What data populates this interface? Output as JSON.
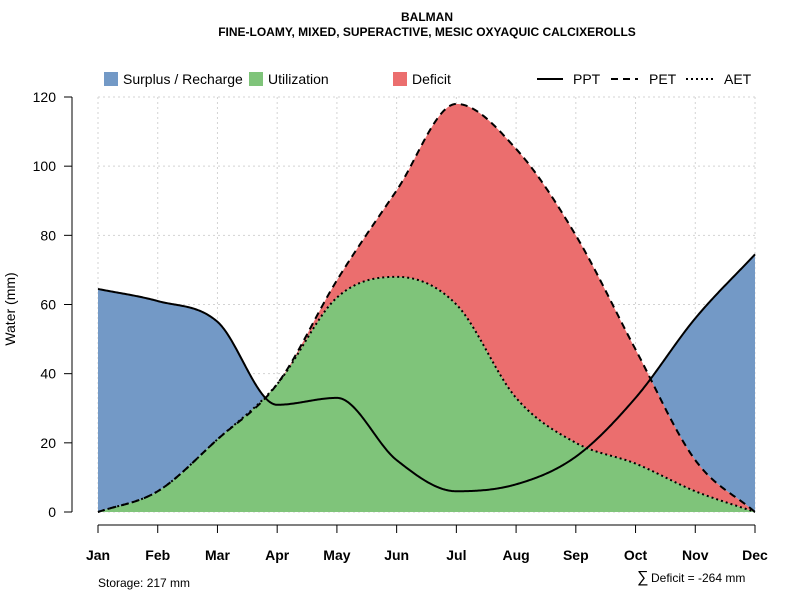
{
  "chart_data": {
    "type": "area",
    "title": "BALMAN",
    "subtitle": "FINE-LOAMY, MIXED, SUPERACTIVE, MESIC OXYAQUIC CALCIXEROLLS",
    "xlabel": "",
    "ylabel": "Water (mm)",
    "ylim": [
      0,
      120
    ],
    "yticks": [
      0,
      20,
      40,
      60,
      80,
      100,
      120
    ],
    "grid": true,
    "legend_position": "top",
    "categories": [
      "Jan",
      "Feb",
      "Mar",
      "Apr",
      "May",
      "Jun",
      "Jul",
      "Aug",
      "Sep",
      "Oct",
      "Nov",
      "Dec"
    ],
    "series": [
      {
        "name": "PPT",
        "style": "solid",
        "values": [
          64.5,
          61,
          55,
          31,
          33,
          15,
          6,
          8,
          16,
          33,
          56,
          74.5
        ]
      },
      {
        "name": "PET",
        "style": "dashed",
        "values": [
          0,
          6,
          21,
          37,
          67,
          93,
          118,
          105,
          80,
          47,
          15,
          0
        ]
      },
      {
        "name": "AET",
        "style": "dotted",
        "values": [
          0,
          6,
          21,
          37,
          62,
          68,
          60,
          33,
          20,
          14,
          6,
          0
        ]
      }
    ],
    "fills": [
      {
        "name": "Surplus / Recharge",
        "color": "#7399c6"
      },
      {
        "name": "Utilization",
        "color": "#7fc47a"
      },
      {
        "name": "Deficit",
        "color": "#eb6e6e"
      }
    ],
    "line_legend": [
      "PPT",
      "PET",
      "AET"
    ],
    "annotations": {
      "storage": "Storage: 217 mm",
      "deficit_symbol": "∑",
      "deficit": "Deficit = -264 mm"
    }
  }
}
